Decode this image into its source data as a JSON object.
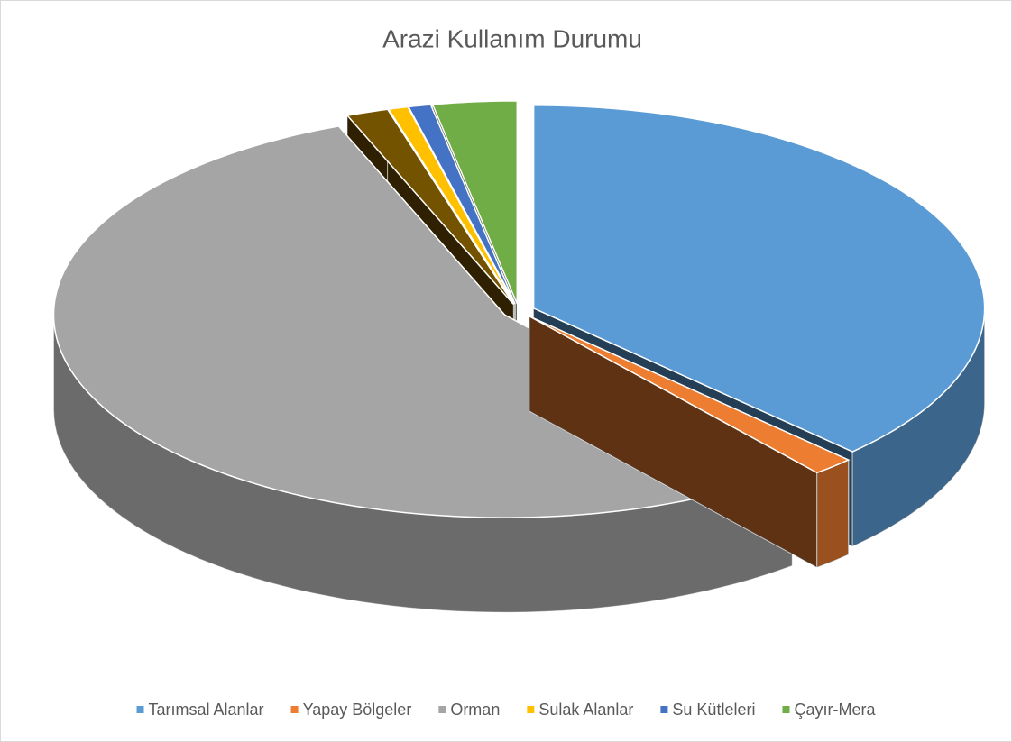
{
  "chart_data": {
    "type": "pie3d",
    "title": "Arazi Kullanım Durumu",
    "categories": [
      "Tarımsal Alanlar",
      "Yapay Bölgeler",
      "Orman",
      null,
      "Sulak Alanlar",
      "Su Kütleleri",
      "Çayır-Mera"
    ],
    "values": [
      37.5,
      1.5,
      55,
      1.5,
      0.7,
      0.8,
      3
    ],
    "colors": [
      "#5b9bd5",
      "#ed7d31",
      "#a5a5a5",
      "#735200",
      "#ffc000",
      "#4472c4",
      "#70ad47"
    ],
    "legend": "bottom"
  }
}
